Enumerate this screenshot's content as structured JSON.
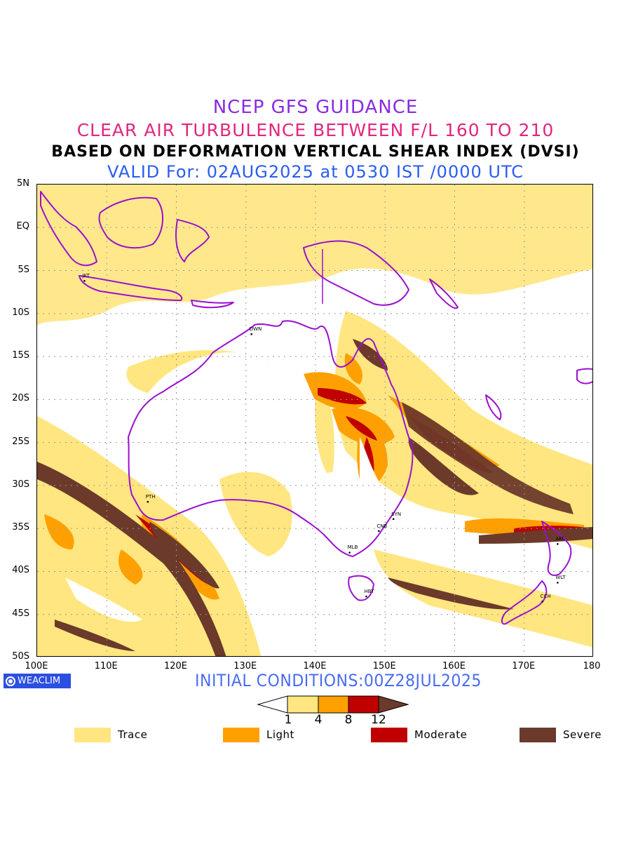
{
  "titles": {
    "line1": "NCEP GFS GUIDANCE",
    "line2": "CLEAR AIR TURBULENCE BETWEEN F/L 160 TO 210",
    "line3": "BASED ON DEFORMATION VERTICAL SHEAR INDEX (DVSI)",
    "line4": "VALID For: 02AUG2025 at 0530 IST /0000 UTC"
  },
  "colors": {
    "title1": "#8a2be2",
    "title2": "#e0287d",
    "title3": "#000000",
    "title4": "#2a5cf0",
    "trace": "#ffe680",
    "light": "#ffa000",
    "moderate": "#c00000",
    "severe": "#6b3a2a",
    "coast": "#9b10d0"
  },
  "lat_labels": [
    "5N",
    "EQ",
    "5S",
    "10S",
    "15S",
    "20S",
    "25S",
    "30S",
    "35S",
    "40S",
    "45S",
    "50S"
  ],
  "lon_labels": [
    "100E",
    "110E",
    "120E",
    "130E",
    "140E",
    "150E",
    "160E",
    "170E",
    "180"
  ],
  "cities": [
    {
      "code": "JKT",
      "lon": 106.8,
      "lat": -6.2
    },
    {
      "code": "DWN",
      "lon": 130.8,
      "lat": -12.4
    },
    {
      "code": "PTH",
      "lon": 115.9,
      "lat": -31.9
    },
    {
      "code": "SYN",
      "lon": 151.2,
      "lat": -33.9
    },
    {
      "code": "CNB",
      "lon": 149.1,
      "lat": -35.3
    },
    {
      "code": "MLB",
      "lon": 144.9,
      "lat": -37.8
    },
    {
      "code": "HBT",
      "lon": 147.3,
      "lat": -42.9
    },
    {
      "code": "AKL",
      "lon": 174.8,
      "lat": -36.8
    },
    {
      "code": "WLT",
      "lon": 174.8,
      "lat": -41.3
    },
    {
      "code": "CCH",
      "lon": 172.6,
      "lat": -43.5
    }
  ],
  "brand": "WEACLIM",
  "brand_icon": "circle-logo-icon",
  "initial_conditions": "INITIAL CONDITIONS:00Z28JUL2025",
  "colorbar": {
    "ticks": [
      "1",
      "4",
      "8",
      "12"
    ]
  },
  "legend": [
    {
      "label": "Trace",
      "color": "#ffe680"
    },
    {
      "label": "Light",
      "color": "#ffa000"
    },
    {
      "label": "Moderate",
      "color": "#c00000"
    },
    {
      "label": "Severe",
      "color": "#6b3a2a"
    }
  ]
}
